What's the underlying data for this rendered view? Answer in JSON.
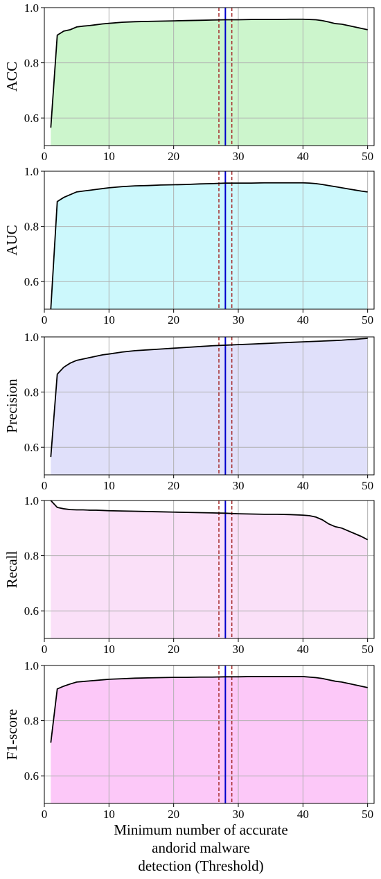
{
  "figure": {
    "xlabel_lines": [
      "Minimum number of accurate",
      "andorid malware",
      "detection (Threshold)"
    ],
    "x_ticks": [
      0,
      10,
      20,
      30,
      40,
      50
    ],
    "y_ticks": [
      0.6,
      0.8,
      1.0
    ],
    "colors": {
      "vline_center": "#0000cc",
      "vline_dashed": "#a52a2a",
      "curve": "#000000",
      "grid": "#b0b0b0"
    }
  },
  "chart_data": [
    {
      "type": "area",
      "ylabel": "ACC",
      "fill": "#ccf5cc",
      "xlim": [
        0,
        51
      ],
      "ylim": [
        0.5,
        1.0
      ],
      "grid": true,
      "x": [
        1,
        2,
        3,
        4,
        5,
        6,
        7,
        8,
        9,
        10,
        12,
        14,
        16,
        18,
        20,
        22,
        24,
        26,
        28,
        30,
        32,
        34,
        36,
        38,
        40,
        41,
        42,
        43,
        44,
        45,
        46,
        47,
        48,
        49,
        50
      ],
      "y": [
        0.565,
        0.9,
        0.915,
        0.92,
        0.93,
        0.933,
        0.935,
        0.938,
        0.941,
        0.943,
        0.947,
        0.949,
        0.95,
        0.951,
        0.952,
        0.953,
        0.954,
        0.955,
        0.956,
        0.956,
        0.957,
        0.957,
        0.957,
        0.958,
        0.958,
        0.957,
        0.956,
        0.953,
        0.948,
        0.942,
        0.94,
        0.935,
        0.93,
        0.925,
        0.92
      ],
      "vlines": {
        "center": 28,
        "dashed": [
          27,
          29
        ]
      }
    },
    {
      "type": "area",
      "ylabel": "AUC",
      "fill": "#ccf8fc",
      "xlim": [
        0,
        51
      ],
      "ylim": [
        0.5,
        1.0
      ],
      "grid": true,
      "x": [
        1,
        2,
        3,
        4,
        5,
        6,
        7,
        8,
        9,
        10,
        12,
        14,
        16,
        18,
        20,
        22,
        24,
        26,
        28,
        30,
        32,
        34,
        36,
        38,
        40,
        41,
        42,
        43,
        44,
        45,
        46,
        47,
        48,
        49,
        50
      ],
      "y": [
        0.5,
        0.89,
        0.905,
        0.915,
        0.925,
        0.928,
        0.931,
        0.934,
        0.937,
        0.94,
        0.944,
        0.947,
        0.948,
        0.95,
        0.951,
        0.952,
        0.954,
        0.955,
        0.957,
        0.957,
        0.957,
        0.958,
        0.958,
        0.958,
        0.958,
        0.957,
        0.955,
        0.952,
        0.948,
        0.944,
        0.94,
        0.936,
        0.932,
        0.928,
        0.925
      ],
      "vlines": {
        "center": 28,
        "dashed": [
          27,
          29
        ]
      }
    },
    {
      "type": "area",
      "ylabel": "Precision",
      "fill": "#e0e0fa",
      "xlim": [
        0,
        51
      ],
      "ylim": [
        0.5,
        1.0
      ],
      "grid": true,
      "x": [
        1,
        2,
        3,
        4,
        5,
        6,
        7,
        8,
        9,
        10,
        12,
        14,
        16,
        18,
        20,
        22,
        24,
        26,
        28,
        30,
        32,
        34,
        36,
        38,
        40,
        41,
        42,
        43,
        44,
        45,
        46,
        47,
        48,
        49,
        50
      ],
      "y": [
        0.565,
        0.865,
        0.89,
        0.905,
        0.915,
        0.92,
        0.925,
        0.93,
        0.935,
        0.938,
        0.945,
        0.95,
        0.953,
        0.956,
        0.959,
        0.962,
        0.965,
        0.968,
        0.97,
        0.972,
        0.974,
        0.976,
        0.978,
        0.98,
        0.982,
        0.983,
        0.984,
        0.985,
        0.986,
        0.987,
        0.988,
        0.99,
        0.991,
        0.993,
        0.995
      ],
      "vlines": {
        "center": 28,
        "dashed": [
          27,
          29
        ]
      }
    },
    {
      "type": "area",
      "ylabel": "Recall",
      "fill": "#fae0f8",
      "xlim": [
        0,
        51
      ],
      "ylim": [
        0.5,
        1.0
      ],
      "grid": true,
      "x": [
        1,
        2,
        3,
        4,
        5,
        6,
        7,
        8,
        9,
        10,
        12,
        14,
        16,
        18,
        20,
        22,
        24,
        26,
        28,
        30,
        32,
        34,
        36,
        38,
        40,
        41,
        42,
        43,
        44,
        45,
        46,
        47,
        48,
        49,
        50
      ],
      "y": [
        1.0,
        0.975,
        0.97,
        0.967,
        0.966,
        0.966,
        0.965,
        0.965,
        0.964,
        0.963,
        0.962,
        0.961,
        0.96,
        0.959,
        0.958,
        0.957,
        0.956,
        0.955,
        0.954,
        0.952,
        0.951,
        0.95,
        0.95,
        0.949,
        0.947,
        0.945,
        0.94,
        0.93,
        0.915,
        0.905,
        0.9,
        0.89,
        0.88,
        0.87,
        0.858
      ],
      "vlines": {
        "center": 28,
        "dashed": [
          27,
          29
        ]
      }
    },
    {
      "type": "area",
      "ylabel": "F1-score",
      "fill": "#fcc8f8",
      "xlim": [
        0,
        51
      ],
      "ylim": [
        0.5,
        1.0
      ],
      "grid": true,
      "x": [
        1,
        2,
        3,
        4,
        5,
        6,
        7,
        8,
        9,
        10,
        12,
        14,
        16,
        18,
        20,
        22,
        24,
        26,
        28,
        30,
        32,
        34,
        36,
        38,
        40,
        41,
        42,
        43,
        44,
        45,
        46,
        47,
        48,
        49,
        50
      ],
      "y": [
        0.72,
        0.915,
        0.925,
        0.933,
        0.94,
        0.942,
        0.944,
        0.946,
        0.948,
        0.95,
        0.952,
        0.954,
        0.955,
        0.956,
        0.957,
        0.957,
        0.958,
        0.958,
        0.959,
        0.959,
        0.96,
        0.96,
        0.96,
        0.96,
        0.96,
        0.958,
        0.956,
        0.953,
        0.948,
        0.943,
        0.94,
        0.935,
        0.93,
        0.925,
        0.92
      ],
      "vlines": {
        "center": 28,
        "dashed": [
          27,
          29
        ]
      }
    }
  ]
}
